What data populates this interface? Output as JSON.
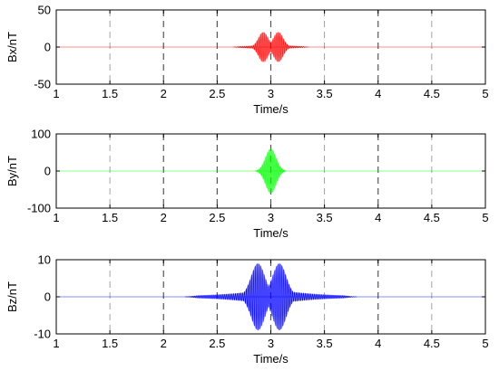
{
  "chart_data": [
    {
      "type": "line",
      "ylabel": "Bx/nT",
      "xlabel": "Time/s",
      "xlim": [
        1,
        5
      ],
      "ylim": [
        -50,
        50
      ],
      "xticks": [
        "1",
        "1.5",
        "2",
        "2.5",
        "3",
        "3.5",
        "4",
        "4.5",
        "5"
      ],
      "yticks": [
        "50",
        "0",
        "-50"
      ],
      "grid": true,
      "color": "#ff0000",
      "signal": {
        "shape": "double-peaked oscillating burst",
        "center_s": 3.0,
        "peak_times_s": [
          2.93,
          3.07
        ],
        "peak_amplitude_nT": 20,
        "extent_s": [
          2.65,
          3.35
        ],
        "carrier_hz": 60
      }
    },
    {
      "type": "line",
      "ylabel": "By/nT",
      "xlabel": "Time/s",
      "xlim": [
        1,
        5
      ],
      "ylim": [
        -100,
        100
      ],
      "xticks": [
        "1",
        "1.5",
        "2",
        "2.5",
        "3",
        "3.5",
        "4",
        "4.5",
        "5"
      ],
      "yticks": [
        "100",
        "0",
        "-100"
      ],
      "grid": true,
      "color": "#00ff00",
      "signal": {
        "shape": "single-peaked oscillating burst",
        "center_s": 3.0,
        "peak_times_s": [
          3.0
        ],
        "peak_amplitude_nT": 60,
        "extent_s": [
          2.85,
          3.15
        ],
        "carrier_hz": 60
      }
    },
    {
      "type": "line",
      "ylabel": "Bz/nT",
      "xlabel": "Time/s",
      "xlim": [
        1,
        5
      ],
      "ylim": [
        -10,
        10
      ],
      "xticks": [
        "1",
        "1.5",
        "2",
        "2.5",
        "3",
        "3.5",
        "4",
        "4.5",
        "5"
      ],
      "yticks": [
        "10",
        "0",
        "-10"
      ],
      "grid": true,
      "color": "#0000ff",
      "signal": {
        "shape": "double-peaked oscillating burst",
        "center_s": 3.0,
        "peak_times_s": [
          2.88,
          3.08
        ],
        "peak_amplitude_nT": 9,
        "extent_s": [
          2.2,
          3.8
        ],
        "carrier_hz": 60
      }
    }
  ]
}
